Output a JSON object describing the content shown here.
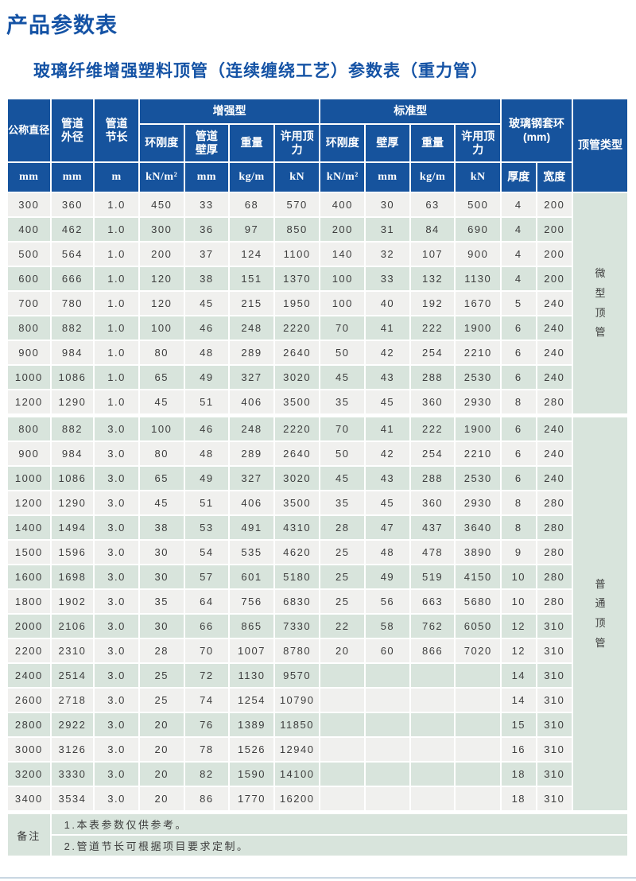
{
  "page": {
    "title": "产品参数表",
    "subtitle": "玻璃纤维增强塑料顶管（连续缠绕工艺）参数表（重力管）"
  },
  "colors": {
    "header_blue": "#16539D",
    "title_blue": "#1553A5",
    "row_green": "#D8E4DC",
    "row_light": "#F0F0EE",
    "body_text": "#3D3D3D",
    "edge_line": "#C9D7E2"
  },
  "table": {
    "header": {
      "diameter": "公称直径",
      "outer_diameter": "管道\n外径",
      "segment_length": "管道\n节长",
      "group_reinforced": "增强型",
      "group_standard": "标准型",
      "subs": [
        "环刚度",
        "管道\n壁厚",
        "重量",
        "许用顶力",
        "环刚度",
        "壁厚",
        "重量",
        "许用顶力"
      ],
      "sleeve": "玻璃钢套环\n(mm)",
      "thickness": "厚度",
      "width": "宽度",
      "pipe_type": "顶管类型"
    },
    "units": [
      "mm",
      "mm",
      "m",
      "kN/m²",
      "mm",
      "kg/m",
      "kN",
      "kN/m²",
      "mm",
      "kg/m",
      "kN"
    ],
    "groups": [
      {
        "type": "微型顶管",
        "rows": [
          [
            "300",
            "360",
            "1.0",
            "450",
            "33",
            "68",
            "570",
            "400",
            "30",
            "63",
            "500",
            "4",
            "200"
          ],
          [
            "400",
            "462",
            "1.0",
            "300",
            "36",
            "97",
            "850",
            "200",
            "31",
            "84",
            "690",
            "4",
            "200"
          ],
          [
            "500",
            "564",
            "1.0",
            "200",
            "37",
            "124",
            "1100",
            "140",
            "32",
            "107",
            "900",
            "4",
            "200"
          ],
          [
            "600",
            "666",
            "1.0",
            "120",
            "38",
            "151",
            "1370",
            "100",
            "33",
            "132",
            "1130",
            "4",
            "200"
          ],
          [
            "700",
            "780",
            "1.0",
            "120",
            "45",
            "215",
            "1950",
            "100",
            "40",
            "192",
            "1670",
            "5",
            "240"
          ],
          [
            "800",
            "882",
            "1.0",
            "100",
            "46",
            "248",
            "2220",
            "70",
            "41",
            "222",
            "1900",
            "6",
            "240"
          ],
          [
            "900",
            "984",
            "1.0",
            "80",
            "48",
            "289",
            "2640",
            "50",
            "42",
            "254",
            "2210",
            "6",
            "240"
          ],
          [
            "1000",
            "1086",
            "1.0",
            "65",
            "49",
            "327",
            "3020",
            "45",
            "43",
            "288",
            "2530",
            "6",
            "240"
          ],
          [
            "1200",
            "1290",
            "1.0",
            "45",
            "51",
            "406",
            "3500",
            "35",
            "45",
            "360",
            "2930",
            "8",
            "280"
          ]
        ]
      },
      {
        "type": "普通顶管",
        "rows": [
          [
            "800",
            "882",
            "3.0",
            "100",
            "46",
            "248",
            "2220",
            "70",
            "41",
            "222",
            "1900",
            "6",
            "240"
          ],
          [
            "900",
            "984",
            "3.0",
            "80",
            "48",
            "289",
            "2640",
            "50",
            "42",
            "254",
            "2210",
            "6",
            "240"
          ],
          [
            "1000",
            "1086",
            "3.0",
            "65",
            "49",
            "327",
            "3020",
            "45",
            "43",
            "288",
            "2530",
            "6",
            "240"
          ],
          [
            "1200",
            "1290",
            "3.0",
            "45",
            "51",
            "406",
            "3500",
            "35",
            "45",
            "360",
            "2930",
            "8",
            "280"
          ],
          [
            "1400",
            "1494",
            "3.0",
            "38",
            "53",
            "491",
            "4310",
            "28",
            "47",
            "437",
            "3640",
            "8",
            "280"
          ],
          [
            "1500",
            "1596",
            "3.0",
            "30",
            "54",
            "535",
            "4620",
            "25",
            "48",
            "478",
            "3890",
            "9",
            "280"
          ],
          [
            "1600",
            "1698",
            "3.0",
            "30",
            "57",
            "601",
            "5180",
            "25",
            "49",
            "519",
            "4150",
            "10",
            "280"
          ],
          [
            "1800",
            "1902",
            "3.0",
            "35",
            "64",
            "756",
            "6830",
            "25",
            "56",
            "663",
            "5680",
            "10",
            "280"
          ],
          [
            "2000",
            "2106",
            "3.0",
            "30",
            "66",
            "865",
            "7330",
            "22",
            "58",
            "762",
            "6050",
            "12",
            "310"
          ],
          [
            "2200",
            "2310",
            "3.0",
            "28",
            "70",
            "1007",
            "8780",
            "20",
            "60",
            "866",
            "7020",
            "12",
            "310"
          ],
          [
            "2400",
            "2514",
            "3.0",
            "25",
            "72",
            "1130",
            "9570",
            "",
            "",
            "",
            "",
            "14",
            "310"
          ],
          [
            "2600",
            "2718",
            "3.0",
            "25",
            "74",
            "1254",
            "10790",
            "",
            "",
            "",
            "",
            "14",
            "310"
          ],
          [
            "2800",
            "2922",
            "3.0",
            "20",
            "76",
            "1389",
            "11850",
            "",
            "",
            "",
            "",
            "15",
            "310"
          ],
          [
            "3000",
            "3126",
            "3.0",
            "20",
            "78",
            "1526",
            "12940",
            "",
            "",
            "",
            "",
            "16",
            "310"
          ],
          [
            "3200",
            "3330",
            "3.0",
            "20",
            "82",
            "1590",
            "14100",
            "",
            "",
            "",
            "",
            "18",
            "310"
          ],
          [
            "3400",
            "3534",
            "3.0",
            "20",
            "86",
            "1770",
            "16200",
            "",
            "",
            "",
            "",
            "18",
            "310"
          ]
        ]
      }
    ]
  },
  "notes": {
    "label": "备注",
    "items": [
      "1.本表参数仅供参考。",
      "2.管道节长可根据项目要求定制。"
    ]
  }
}
